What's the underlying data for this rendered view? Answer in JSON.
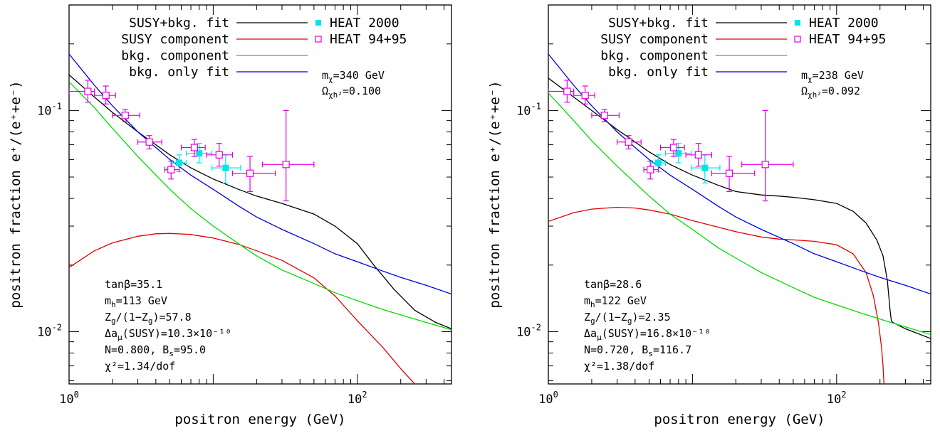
{
  "chart_data": [
    {
      "type": "line",
      "xlabel": "positron energy  (GeV)",
      "ylabel": "positron fraction e⁺/(e⁺+e⁻)",
      "x_scale": "log",
      "y_scale": "log",
      "xlim": [
        1,
        450
      ],
      "ylim": [
        0.0058,
        0.3
      ],
      "x_ticks": [
        {
          "value": 1,
          "base": "10",
          "exp": "0"
        },
        {
          "value": 100,
          "base": "10",
          "exp": "2"
        }
      ],
      "y_ticks": [
        {
          "value": 0.01,
          "base": "10",
          "exp": "-2"
        },
        {
          "value": 0.1,
          "base": "10",
          "exp": "-1"
        }
      ],
      "legend_location": "top",
      "series": [
        {
          "name": "SUSY+bkg. fit",
          "color": "#000000",
          "x": [
            1,
            1.5,
            2,
            3,
            4,
            5,
            7,
            10,
            15,
            20,
            30,
            50,
            70,
            100,
            130,
            180,
            250,
            350,
            450
          ],
          "y": [
            0.145,
            0.115,
            0.098,
            0.08,
            0.07,
            0.063,
            0.055,
            0.049,
            0.044,
            0.041,
            0.038,
            0.034,
            0.03,
            0.025,
            0.02,
            0.0155,
            0.0125,
            0.011,
            0.0103
          ]
        },
        {
          "name": "SUSY component",
          "color": "#e00000",
          "x": [
            1,
            1.5,
            2,
            3,
            4,
            5,
            7,
            10,
            15,
            20,
            30,
            50,
            70,
            100,
            150,
            200,
            250,
            300
          ],
          "y": [
            0.0195,
            0.0232,
            0.0252,
            0.027,
            0.0277,
            0.0278,
            0.0275,
            0.0265,
            0.0248,
            0.0232,
            0.021,
            0.0175,
            0.0145,
            0.0112,
            0.0085,
            0.0068,
            0.0058,
            0.0052
          ]
        },
        {
          "name": "bkg. component",
          "color": "#00dd00",
          "x": [
            1,
            1.5,
            2,
            3,
            4,
            5,
            7,
            10,
            15,
            20,
            30,
            50,
            70,
            100,
            150,
            200,
            300,
            450
          ],
          "y": [
            0.135,
            0.103,
            0.083,
            0.062,
            0.051,
            0.044,
            0.036,
            0.03,
            0.025,
            0.022,
            0.019,
            0.0165,
            0.015,
            0.0138,
            0.0126,
            0.0119,
            0.011,
            0.0102
          ]
        },
        {
          "name": "bkg. only fit",
          "color": "#0000e0",
          "x": [
            1,
            1.5,
            2,
            3,
            4,
            5,
            7,
            10,
            15,
            20,
            30,
            50,
            70,
            100,
            150,
            200,
            300,
            450
          ],
          "y": [
            0.18,
            0.13,
            0.105,
            0.08,
            0.068,
            0.06,
            0.051,
            0.044,
            0.037,
            0.033,
            0.029,
            0.025,
            0.0225,
            0.0207,
            0.0188,
            0.0176,
            0.0162,
            0.0148
          ]
        }
      ],
      "data_series": [
        {
          "name": "HEAT 2000",
          "marker": "filled-square",
          "color": "#00e5e5",
          "points": [
            {
              "x": 5.8,
              "y": 0.058,
              "xlo": 5.2,
              "xhi": 6.5,
              "ylo": 0.053,
              "yhi": 0.063
            },
            {
              "x": 8.0,
              "y": 0.064,
              "xlo": 6.5,
              "xhi": 9.8,
              "ylo": 0.058,
              "yhi": 0.071
            },
            {
              "x": 12.2,
              "y": 0.055,
              "xlo": 9.8,
              "xhi": 15.5,
              "ylo": 0.047,
              "yhi": 0.063
            }
          ]
        },
        {
          "name": "HEAT 94+95",
          "marker": "open-square",
          "color": "#e000e0",
          "points": [
            {
              "x": 1.35,
              "y": 0.122,
              "xlo": 1.0,
              "xhi": 1.5,
              "ylo": 0.109,
              "yhi": 0.137
            },
            {
              "x": 1.8,
              "y": 0.117,
              "xlo": 1.5,
              "xhi": 2.1,
              "ylo": 0.107,
              "yhi": 0.129
            },
            {
              "x": 2.45,
              "y": 0.095,
              "xlo": 2.0,
              "xhi": 3.1,
              "ylo": 0.089,
              "yhi": 0.101
            },
            {
              "x": 3.6,
              "y": 0.072,
              "xlo": 3.0,
              "xhi": 4.4,
              "ylo": 0.067,
              "yhi": 0.077
            },
            {
              "x": 5.1,
              "y": 0.054,
              "xlo": 4.6,
              "xhi": 5.8,
              "ylo": 0.049,
              "yhi": 0.059
            },
            {
              "x": 7.4,
              "y": 0.068,
              "xlo": 6.0,
              "xhi": 8.8,
              "ylo": 0.062,
              "yhi": 0.074
            },
            {
              "x": 11.0,
              "y": 0.063,
              "xlo": 9.0,
              "xhi": 13.6,
              "ylo": 0.056,
              "yhi": 0.071
            },
            {
              "x": 18.0,
              "y": 0.052,
              "xlo": 13.6,
              "xhi": 27.0,
              "ylo": 0.043,
              "yhi": 0.062
            },
            {
              "x": 32.0,
              "y": 0.057,
              "xlo": 22.0,
              "xhi": 50.0,
              "ylo": 0.039,
              "yhi": 0.1
            }
          ]
        }
      ],
      "annotation_top": [
        "m_χ=340 GeV",
        "Ω_χh²=0.100"
      ],
      "annotation_bottom": [
        "tanβ=35.1",
        "m_h=113 GeV",
        "Z_g/(1−Z_g)=57.8",
        "Δa_μ(SUSY)=10.3×10⁻¹⁰",
        "N=0.800, B_s=95.0",
        "χ²=1.34/dof"
      ]
    },
    {
      "type": "line",
      "xlabel": "positron energy  (GeV)",
      "ylabel": "positron fraction e⁺/(e⁺+e⁻)",
      "x_scale": "log",
      "y_scale": "log",
      "xlim": [
        1,
        450
      ],
      "ylim": [
        0.0058,
        0.3
      ],
      "x_ticks": [
        {
          "value": 1,
          "base": "10",
          "exp": "0"
        },
        {
          "value": 100,
          "base": "10",
          "exp": "2"
        }
      ],
      "y_ticks": [
        {
          "value": 0.01,
          "base": "10",
          "exp": "-2"
        },
        {
          "value": 0.1,
          "base": "10",
          "exp": "-1"
        }
      ],
      "legend_location": "top",
      "series": [
        {
          "name": "SUSY+bkg. fit",
          "color": "#000000",
          "x": [
            1,
            1.5,
            2,
            3,
            4,
            5,
            7,
            10,
            15,
            20,
            30,
            40,
            50,
            70,
            100,
            130,
            160,
            190,
            210,
            225,
            235,
            240,
            245,
            300,
            450
          ],
          "y": [
            0.14,
            0.115,
            0.1,
            0.082,
            0.072,
            0.065,
            0.057,
            0.051,
            0.046,
            0.043,
            0.0415,
            0.041,
            0.0405,
            0.0395,
            0.038,
            0.035,
            0.031,
            0.026,
            0.022,
            0.017,
            0.0125,
            0.0112,
            0.011,
            0.0103,
            0.0093
          ]
        },
        {
          "name": "SUSY component",
          "color": "#e00000",
          "x": [
            1,
            1.5,
            2,
            3,
            4,
            5,
            7,
            10,
            15,
            20,
            30,
            40,
            50,
            70,
            100,
            130,
            160,
            180,
            195,
            205,
            210,
            213
          ],
          "y": [
            0.0315,
            0.0345,
            0.0358,
            0.0365,
            0.0362,
            0.0355,
            0.034,
            0.0318,
            0.0297,
            0.0283,
            0.0268,
            0.0262,
            0.026,
            0.0256,
            0.0247,
            0.0225,
            0.0185,
            0.0145,
            0.011,
            0.0085,
            0.007,
            0.0058
          ]
        },
        {
          "name": "bkg. component",
          "color": "#00dd00",
          "x": [
            1,
            1.5,
            2,
            3,
            4,
            5,
            7,
            10,
            15,
            20,
            30,
            50,
            70,
            100,
            150,
            200,
            300,
            450
          ],
          "y": [
            0.12,
            0.09,
            0.073,
            0.056,
            0.047,
            0.041,
            0.034,
            0.029,
            0.024,
            0.0215,
            0.0185,
            0.0158,
            0.0143,
            0.0132,
            0.0121,
            0.0114,
            0.0105,
            0.0097
          ]
        },
        {
          "name": "bkg. only fit",
          "color": "#0000e0",
          "x": [
            1,
            1.5,
            2,
            3,
            4,
            5,
            7,
            10,
            15,
            20,
            30,
            50,
            70,
            100,
            150,
            200,
            300,
            450
          ],
          "y": [
            0.18,
            0.13,
            0.105,
            0.08,
            0.068,
            0.06,
            0.051,
            0.044,
            0.037,
            0.033,
            0.029,
            0.025,
            0.0225,
            0.0207,
            0.0188,
            0.0176,
            0.0162,
            0.0148
          ]
        }
      ],
      "data_series": [
        {
          "name": "HEAT 2000",
          "marker": "filled-square",
          "color": "#00e5e5",
          "points": [
            {
              "x": 5.8,
              "y": 0.058,
              "xlo": 5.2,
              "xhi": 6.5,
              "ylo": 0.053,
              "yhi": 0.063
            },
            {
              "x": 8.0,
              "y": 0.064,
              "xlo": 6.5,
              "xhi": 9.8,
              "ylo": 0.058,
              "yhi": 0.071
            },
            {
              "x": 12.2,
              "y": 0.055,
              "xlo": 9.8,
              "xhi": 15.5,
              "ylo": 0.047,
              "yhi": 0.063
            }
          ]
        },
        {
          "name": "HEAT 94+95",
          "marker": "open-square",
          "color": "#e000e0",
          "points": [
            {
              "x": 1.35,
              "y": 0.122,
              "xlo": 1.0,
              "xhi": 1.5,
              "ylo": 0.109,
              "yhi": 0.137
            },
            {
              "x": 1.8,
              "y": 0.117,
              "xlo": 1.5,
              "xhi": 2.1,
              "ylo": 0.107,
              "yhi": 0.129
            },
            {
              "x": 2.45,
              "y": 0.095,
              "xlo": 2.0,
              "xhi": 3.1,
              "ylo": 0.089,
              "yhi": 0.101
            },
            {
              "x": 3.6,
              "y": 0.072,
              "xlo": 3.0,
              "xhi": 4.4,
              "ylo": 0.067,
              "yhi": 0.077
            },
            {
              "x": 5.1,
              "y": 0.054,
              "xlo": 4.6,
              "xhi": 5.8,
              "ylo": 0.049,
              "yhi": 0.059
            },
            {
              "x": 7.4,
              "y": 0.068,
              "xlo": 6.0,
              "xhi": 8.8,
              "ylo": 0.062,
              "yhi": 0.074
            },
            {
              "x": 11.0,
              "y": 0.063,
              "xlo": 9.0,
              "xhi": 13.6,
              "ylo": 0.056,
              "yhi": 0.071
            },
            {
              "x": 18.0,
              "y": 0.052,
              "xlo": 13.6,
              "xhi": 27.0,
              "ylo": 0.043,
              "yhi": 0.062
            },
            {
              "x": 32.0,
              "y": 0.057,
              "xlo": 22.0,
              "xhi": 50.0,
              "ylo": 0.039,
              "yhi": 0.1
            }
          ]
        }
      ],
      "annotation_top": [
        "m_χ=238 GeV",
        "Ω_χh²=0.092"
      ],
      "annotation_bottom": [
        "tanβ=28.6",
        "m_h=122 GeV",
        "Z_g/(1−Z_g)=2.35",
        "Δa_μ(SUSY)=16.8×10⁻¹⁰",
        "N=0.720, B_s=116.7",
        "χ²=1.38/dof"
      ]
    }
  ]
}
